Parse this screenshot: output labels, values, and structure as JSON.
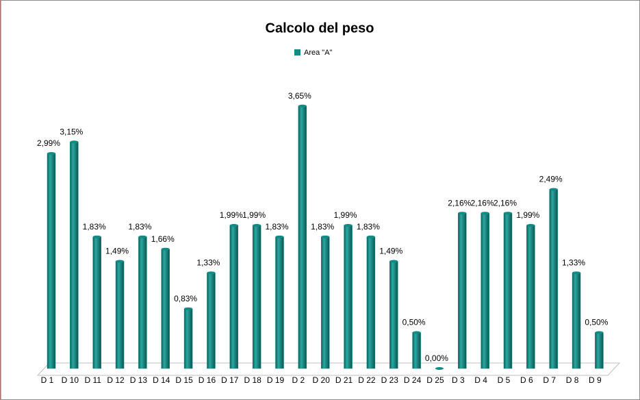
{
  "chart_data": {
    "type": "bar",
    "title": "Calcolo del peso",
    "categories": [
      "D 1",
      "D 10",
      "D 11",
      "D 12",
      "D 13",
      "D 14",
      "D 15",
      "D 16",
      "D 17",
      "D 18",
      "D 19",
      "D 2",
      "D 20",
      "D 21",
      "D 22",
      "D 23",
      "D 24",
      "D 25",
      "D 3",
      "D 4",
      "D 5",
      "D 6",
      "D 7",
      "D 8",
      "D 9"
    ],
    "series": [
      {
        "name": "Area \"A\"",
        "color": "#138a84",
        "values": [
          2.99,
          3.15,
          1.83,
          1.49,
          1.83,
          1.66,
          0.83,
          1.33,
          1.99,
          1.99,
          1.83,
          3.65,
          1.83,
          1.99,
          1.83,
          1.49,
          0.5,
          0.0,
          2.16,
          2.16,
          2.16,
          1.99,
          2.49,
          1.33,
          0.5
        ],
        "value_labels": [
          "2,99%",
          "3,15%",
          "1,83%",
          "1,49%",
          "1,83%",
          "1,66%",
          "0,83%",
          "1,33%",
          "1,99%",
          "1,99%",
          "1,83%",
          "3,65%",
          "1,83%",
          "1,99%",
          "1,83%",
          "1,49%",
          "0,50%",
          "0,00%",
          "2,16%",
          "2,16%",
          "2,16%",
          "1,99%",
          "2,49%",
          "1,33%",
          "0,50%"
        ]
      }
    ],
    "legend": "top"
  }
}
